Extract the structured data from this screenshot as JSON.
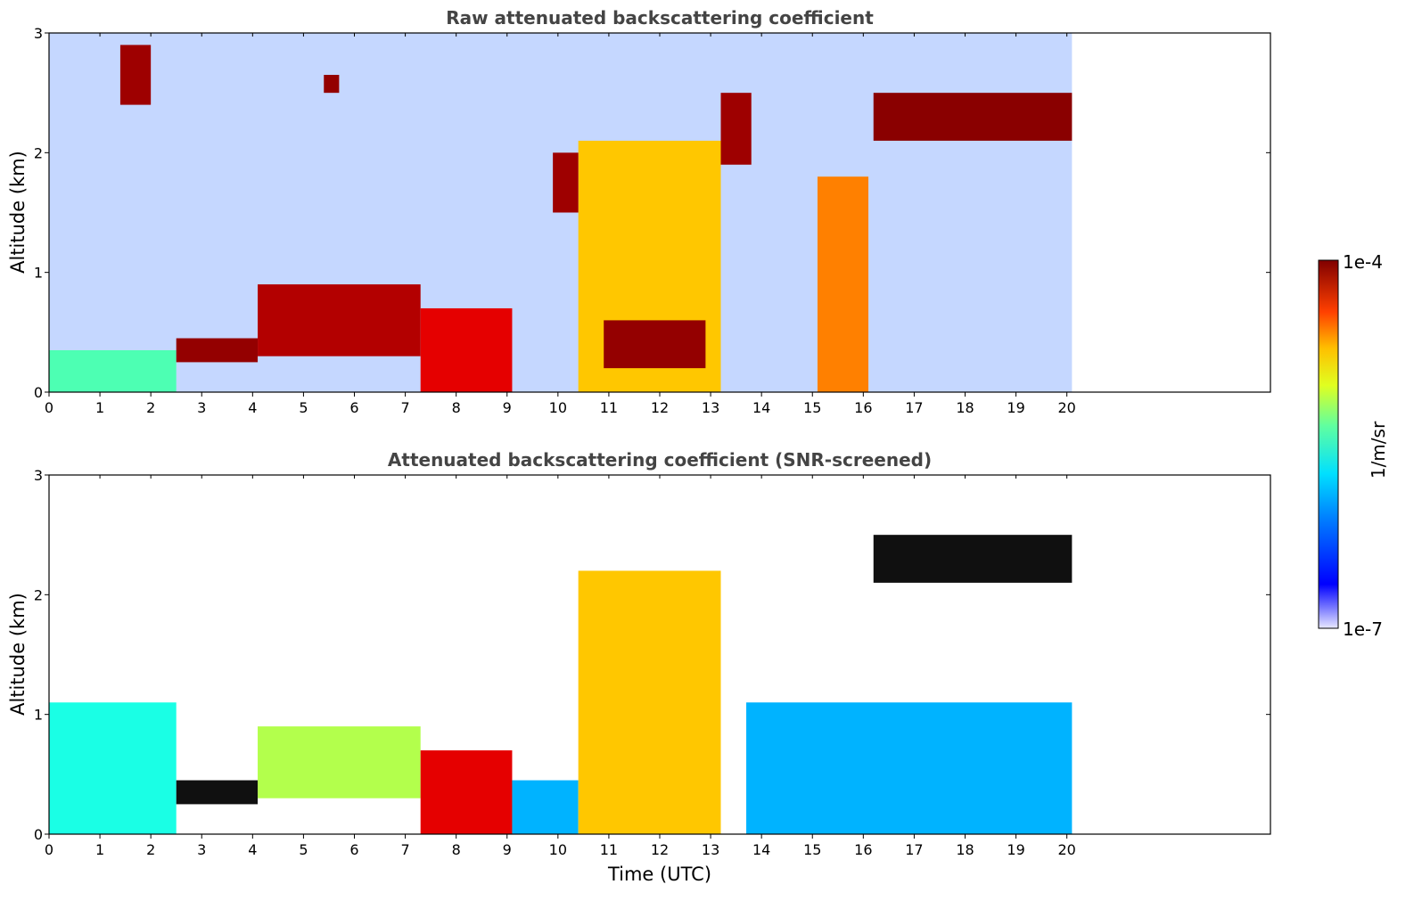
{
  "chart_data": [
    {
      "type": "heatmap",
      "title": "Raw attenuated backscattering coefficient",
      "ylabel": "Altitude (km)",
      "xlabel": "",
      "xlim": [
        0,
        24
      ],
      "ylim": [
        0,
        3
      ],
      "x_ticks": [
        "0",
        "1",
        "2",
        "3",
        "4",
        "5",
        "6",
        "7",
        "8",
        "9",
        "10",
        "11",
        "12",
        "13",
        "14",
        "15",
        "16",
        "17",
        "18",
        "19",
        "20"
      ],
      "y_ticks": [
        "0",
        "1",
        "2",
        "3"
      ],
      "data_extent_x": [
        0,
        20.1
      ],
      "features": [
        {
          "t": [
            0,
            2.5
          ],
          "z": [
            0,
            0.35
          ],
          "level": 0.45
        },
        {
          "t": [
            2.5,
            4.1
          ],
          "z": [
            0.25,
            0.45
          ],
          "level": 0.98
        },
        {
          "t": [
            4.1,
            7.3
          ],
          "z": [
            0.3,
            0.9
          ],
          "level": 0.95
        },
        {
          "t": [
            7.3,
            9.1
          ],
          "z": [
            0,
            0.7
          ],
          "level": 0.9
        },
        {
          "t": [
            10.4,
            13.2
          ],
          "z": [
            0,
            2.1
          ],
          "level": 0.68
        },
        {
          "t": [
            10.9,
            12.9
          ],
          "z": [
            0.2,
            0.6
          ],
          "level": 0.98
        },
        {
          "t": [
            13.2,
            13.8
          ],
          "z": [
            1.9,
            2.5
          ],
          "level": 0.97
        },
        {
          "t": [
            15.1,
            16.1
          ],
          "z": [
            0,
            1.8
          ],
          "level": 0.75
        },
        {
          "t": [
            16.2,
            20.1
          ],
          "z": [
            2.1,
            2.5
          ],
          "level": 0.99
        },
        {
          "t": [
            5.4,
            5.7
          ],
          "z": [
            2.5,
            2.65
          ],
          "level": 0.98
        },
        {
          "t": [
            1.4,
            2.0
          ],
          "z": [
            2.4,
            2.9
          ],
          "level": 0.97
        },
        {
          "t": [
            9.9,
            10.4
          ],
          "z": [
            1.5,
            2.0
          ],
          "level": 0.97
        }
      ]
    },
    {
      "type": "heatmap",
      "title": "Attenuated backscattering coefficient (SNR-screened)",
      "ylabel": "Altitude (km)",
      "xlabel": "Time (UTC)",
      "xlim": [
        0,
        24
      ],
      "ylim": [
        0,
        3
      ],
      "x_ticks": [
        "0",
        "1",
        "2",
        "3",
        "4",
        "5",
        "6",
        "7",
        "8",
        "9",
        "10",
        "11",
        "12",
        "13",
        "14",
        "15",
        "16",
        "17",
        "18",
        "19",
        "20"
      ],
      "y_ticks": [
        "0",
        "1",
        "2",
        "3"
      ],
      "data_extent_x": [
        0,
        20.1
      ],
      "features": [
        {
          "t": [
            0,
            2.5
          ],
          "z": [
            0,
            1.1
          ],
          "level": 0.4
        },
        {
          "t": [
            2.5,
            4.1
          ],
          "z": [
            0.25,
            0.45
          ],
          "level": 1.0
        },
        {
          "t": [
            4.1,
            7.3
          ],
          "z": [
            0.3,
            0.9
          ],
          "level": 0.55
        },
        {
          "t": [
            7.3,
            9.1
          ],
          "z": [
            0,
            0.7
          ],
          "level": 0.9
        },
        {
          "t": [
            9.1,
            10.4
          ],
          "z": [
            0,
            0.45
          ],
          "level": 0.3
        },
        {
          "t": [
            10.4,
            13.2
          ],
          "z": [
            0,
            2.2
          ],
          "level": 0.68
        },
        {
          "t": [
            13.7,
            20.1
          ],
          "z": [
            0,
            1.1
          ],
          "level": 0.3
        },
        {
          "t": [
            16.2,
            20.1
          ],
          "z": [
            2.1,
            2.5
          ],
          "level": 1.0
        }
      ]
    }
  ],
  "colorbar": {
    "max_label": "1e-4",
    "min_label": "1e-7",
    "label": "1/m/sr",
    "colormap": "jet",
    "scale": "log"
  }
}
